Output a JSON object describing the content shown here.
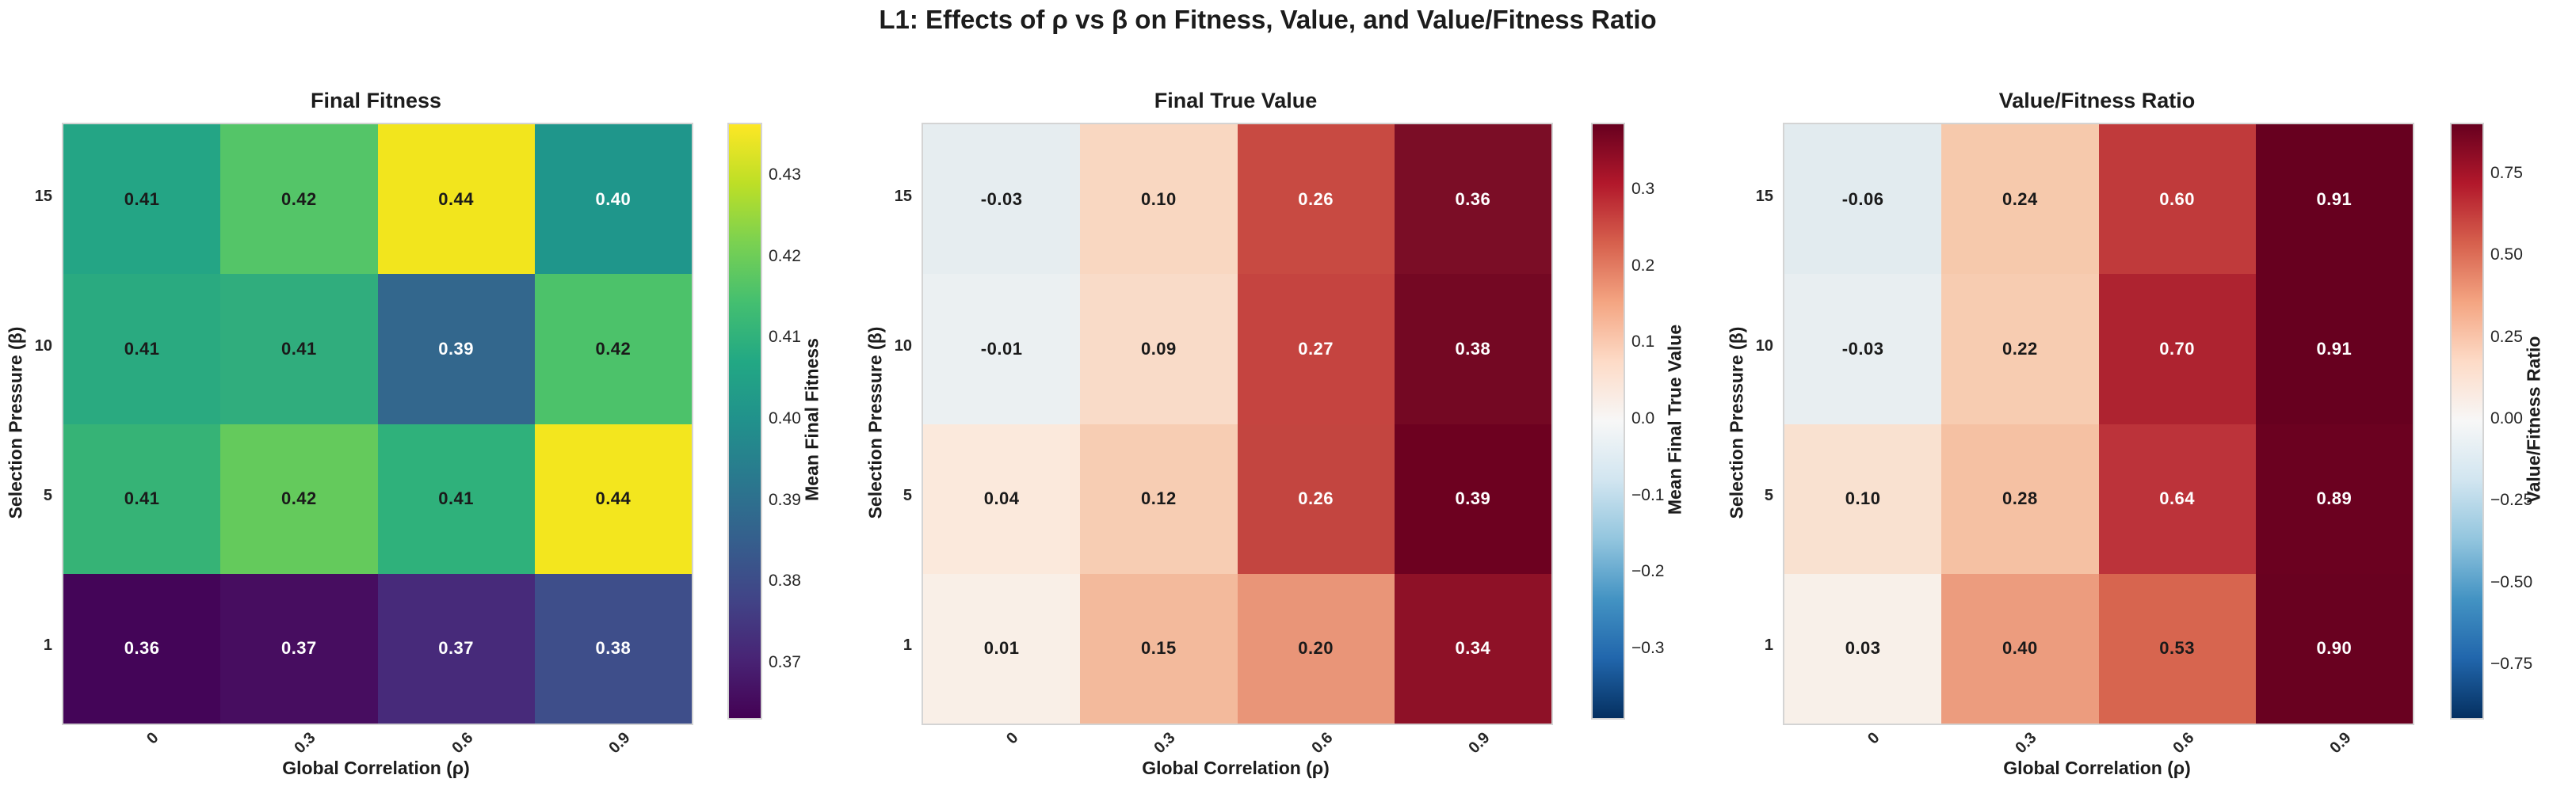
{
  "figure": {
    "title": "L1: Effects of ρ vs β on Fitness, Value, and Value/Fitness Ratio"
  },
  "chart_data": [
    {
      "type": "heatmap",
      "title": "Final Fitness",
      "xlabel": "Global Correlation (ρ)",
      "ylabel": "Selection Pressure (β)",
      "x_categories": [
        "0",
        "0.3",
        "0.6",
        "0.9"
      ],
      "y_categories": [
        "15",
        "10",
        "5",
        "1"
      ],
      "values": [
        [
          0.41,
          0.42,
          0.44,
          0.4
        ],
        [
          0.41,
          0.41,
          0.39,
          0.42
        ],
        [
          0.41,
          0.42,
          0.41,
          0.44
        ],
        [
          0.36,
          0.37,
          0.37,
          0.38
        ]
      ],
      "labels": [
        [
          "0.41",
          "0.42",
          "0.44",
          "0.40"
        ],
        [
          "0.41",
          "0.41",
          "0.39",
          "0.42"
        ],
        [
          "0.41",
          "0.42",
          "0.41",
          "0.44"
        ],
        [
          "0.36",
          "0.37",
          "0.37",
          "0.38"
        ]
      ],
      "cell_colors": [
        [
          "#24a585",
          "#54c568",
          "#f2e51d",
          "#1f968b"
        ],
        [
          "#2aaa80",
          "#30ad7d",
          "#33678d",
          "#4cc26a"
        ],
        [
          "#36b376",
          "#64ca5c",
          "#2fb17b",
          "#f3e61e"
        ],
        [
          "#440558",
          "#470d60",
          "#472a7a",
          "#3e4e8a"
        ]
      ],
      "text_colors": [
        [
          "dark",
          "dark",
          "dark",
          "light"
        ],
        [
          "dark",
          "dark",
          "light",
          "dark"
        ],
        [
          "dark",
          "dark",
          "dark",
          "dark"
        ],
        [
          "light",
          "light",
          "light",
          "light"
        ]
      ],
      "colorbar": {
        "label": "Mean Final Fitness",
        "cmap": "viridis",
        "vmin": 0.3635,
        "vmax": 0.4365,
        "tick_values": [
          0.43,
          0.42,
          0.41,
          0.4,
          0.39,
          0.38,
          0.37
        ],
        "tick_labels": [
          "0.43",
          "0.42",
          "0.41",
          "0.40",
          "0.39",
          "0.38",
          "0.37"
        ]
      }
    },
    {
      "type": "heatmap",
      "title": "Final True Value",
      "xlabel": "Global Correlation (ρ)",
      "ylabel": "Selection Pressure (β)",
      "x_categories": [
        "0",
        "0.3",
        "0.6",
        "0.9"
      ],
      "y_categories": [
        "15",
        "10",
        "5",
        "1"
      ],
      "values": [
        [
          -0.03,
          0.1,
          0.26,
          0.36
        ],
        [
          -0.01,
          0.09,
          0.27,
          0.38
        ],
        [
          0.04,
          0.12,
          0.26,
          0.39
        ],
        [
          0.01,
          0.15,
          0.2,
          0.34
        ]
      ],
      "labels": [
        [
          "-0.03",
          "0.10",
          "0.26",
          "0.36"
        ],
        [
          "-0.01",
          "0.09",
          "0.27",
          "0.38"
        ],
        [
          "0.04",
          "0.12",
          "0.26",
          "0.39"
        ],
        [
          "0.01",
          "0.15",
          "0.20",
          "0.34"
        ]
      ],
      "cell_colors": [
        [
          "#e6edf0",
          "#f9d7c1",
          "#c84a42",
          "#7b0d26"
        ],
        [
          "#ebf0f2",
          "#f9dbc8",
          "#c54440",
          "#740823"
        ],
        [
          "#fbe9dc",
          "#f7cdb3",
          "#c34540",
          "#6d0120"
        ],
        [
          "#f9efe7",
          "#f3ba9c",
          "#e99578",
          "#8e1127"
        ]
      ],
      "text_colors": [
        [
          "dark",
          "dark",
          "light",
          "light"
        ],
        [
          "dark",
          "dark",
          "light",
          "light"
        ],
        [
          "dark",
          "dark",
          "light",
          "light"
        ],
        [
          "dark",
          "dark",
          "dark",
          "light"
        ]
      ],
      "colorbar": {
        "label": "Mean Final True Value",
        "cmap": "rdbu_r",
        "vmin": -0.3876,
        "vmax": 0.3876,
        "tick_values": [
          0.3,
          0.2,
          0.1,
          0.0,
          -0.1,
          -0.2,
          -0.3
        ],
        "tick_labels": [
          "0.3",
          "0.2",
          "0.1",
          "0.0",
          "−0.1",
          "−0.2",
          "−0.3"
        ]
      }
    },
    {
      "type": "heatmap",
      "title": "Value/Fitness Ratio",
      "xlabel": "Global Correlation (ρ)",
      "ylabel": "Selection Pressure (β)",
      "x_categories": [
        "0",
        "0.3",
        "0.6",
        "0.9"
      ],
      "y_categories": [
        "15",
        "10",
        "5",
        "1"
      ],
      "values": [
        [
          -0.06,
          0.24,
          0.6,
          0.91
        ],
        [
          -0.03,
          0.22,
          0.7,
          0.91
        ],
        [
          0.1,
          0.28,
          0.64,
          0.89
        ],
        [
          0.03,
          0.4,
          0.53,
          0.9
        ]
      ],
      "labels": [
        [
          "-0.06",
          "0.24",
          "0.60",
          "0.91"
        ],
        [
          "-0.03",
          "0.22",
          "0.70",
          "0.91"
        ],
        [
          "0.10",
          "0.28",
          "0.64",
          "0.89"
        ],
        [
          "0.03",
          "0.40",
          "0.53",
          "0.90"
        ]
      ],
      "cell_colors": [
        [
          "#e2ebef",
          "#f6c9ac",
          "#c03a3b",
          "#67001f"
        ],
        [
          "#e8eef1",
          "#f7ccb1",
          "#ae2330",
          "#67001f"
        ],
        [
          "#f9e1d0",
          "#f5c1a3",
          "#bc333a",
          "#6b0120"
        ],
        [
          "#f8f0e9",
          "#ec9c7e",
          "#d7654f",
          "#690120"
        ]
      ],
      "text_colors": [
        [
          "dark",
          "dark",
          "light",
          "light"
        ],
        [
          "dark",
          "dark",
          "light",
          "light"
        ],
        [
          "dark",
          "dark",
          "light",
          "light"
        ],
        [
          "dark",
          "dark",
          "dark",
          "light"
        ]
      ],
      "colorbar": {
        "label": "Value/Fitness Ratio",
        "cmap": "rdbu_r",
        "vmin": -0.907,
        "vmax": 0.907,
        "tick_values": [
          0.75,
          0.5,
          0.25,
          0.0,
          -0.25,
          -0.5,
          -0.75
        ],
        "tick_labels": [
          "0.75",
          "0.50",
          "0.25",
          "0.00",
          "−0.25",
          "−0.50",
          "−0.75"
        ]
      }
    }
  ],
  "style_colors": {
    "annotation_dark": "#1a1a1a",
    "annotation_light": "#ffffff",
    "tick_text": "#262626",
    "frame_border": "#d4d4d4"
  }
}
